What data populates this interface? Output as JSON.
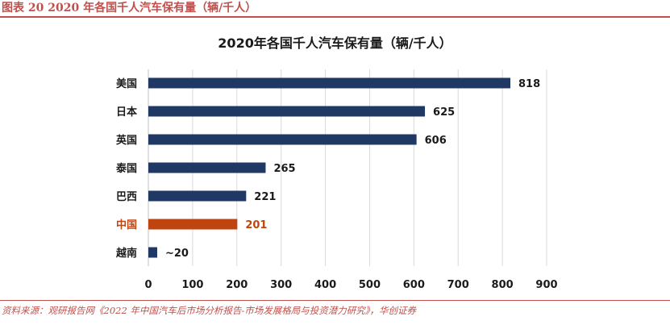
{
  "figure": {
    "label": "图表 20   2020 年各国千人汽车保有量（辆/千人）",
    "source": "资料来源：观研报告网《2022 年中国汽车后市场分析报告-市场发展格局与投资潜力研究》，华创证券"
  },
  "colors": {
    "bar": "#1f3864",
    "highlight": "#c0440f",
    "grid": "#d9d9d9",
    "text": "#1a1a1a"
  },
  "chart_data": {
    "type": "bar",
    "orientation": "horizontal",
    "title": "2020年各国千人汽车保有量（辆/千人）",
    "categories": [
      "美国",
      "日本",
      "英国",
      "泰国",
      "巴西",
      "中国",
      "越南"
    ],
    "values": [
      818,
      625,
      606,
      265,
      221,
      201,
      20
    ],
    "data_labels": [
      "818",
      "625",
      "606",
      "265",
      "221",
      "201",
      "~20"
    ],
    "highlight": [
      "中国"
    ],
    "xlim": [
      0,
      900
    ],
    "xticks": [
      0,
      100,
      200,
      300,
      400,
      500,
      600,
      700,
      800,
      900
    ],
    "grid": "vertical"
  }
}
